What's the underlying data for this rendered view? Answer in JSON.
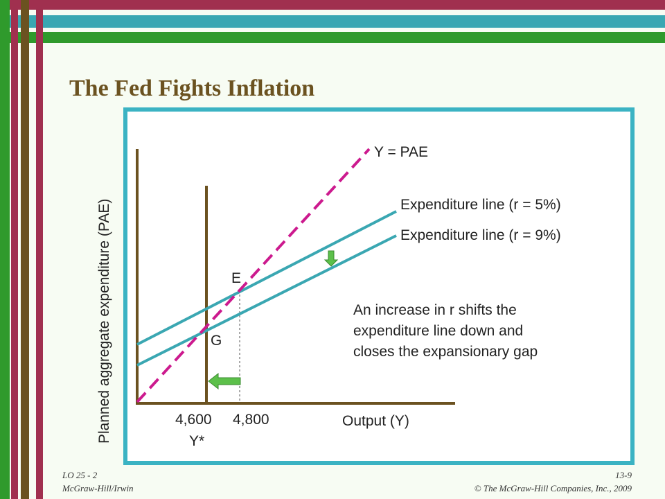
{
  "title": "The Fed Fights Inflation",
  "diagram": {
    "y_axis_label": "Planned aggregate expenditure (PAE)",
    "x_axis_label": "Output (Y)",
    "lines": [
      {
        "label": "Y = PAE"
      },
      {
        "label": "Expenditure line (r = 5%)"
      },
      {
        "label": "Expenditure line (r = 9%)"
      }
    ],
    "points": [
      {
        "label": "E"
      },
      {
        "label": "G"
      }
    ],
    "x_labels": [
      "4,600",
      "4,800"
    ],
    "potential_output_label": "Y*",
    "annotation": [
      "An increase in r shifts the",
      "expenditure line down and",
      "closes the expansionary gap"
    ]
  },
  "footer": {
    "left": [
      "LO 25 - 2",
      "McGraw-Hill/Irwin"
    ],
    "right": [
      "13-9",
      "© The McGraw-Hill Companies, Inc., 2009"
    ]
  }
}
